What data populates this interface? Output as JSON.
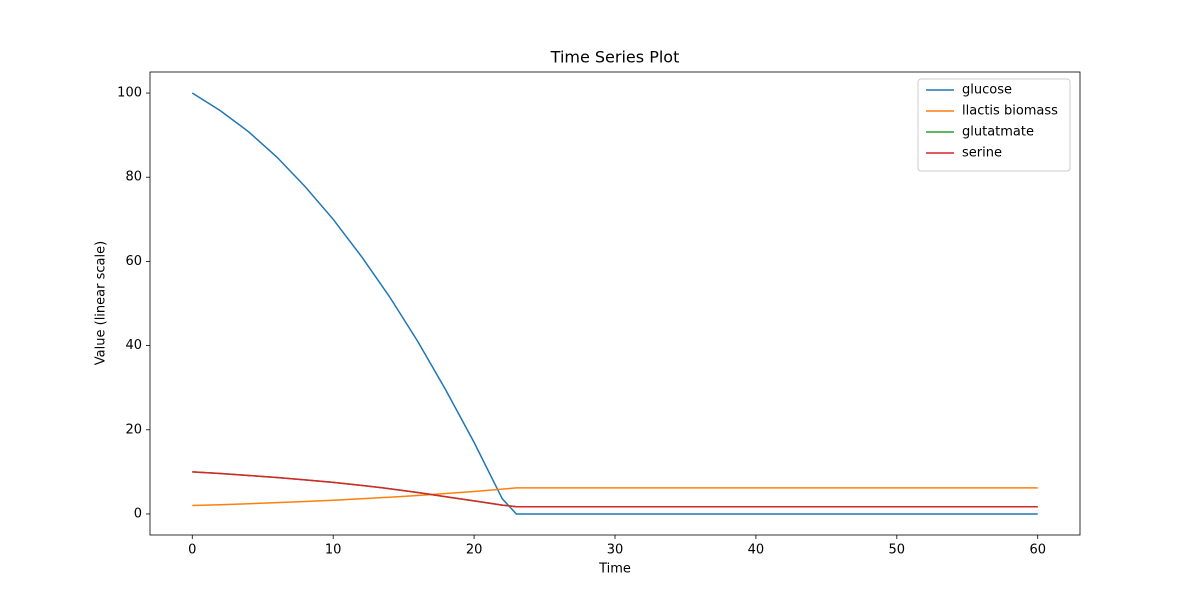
{
  "chart_data": {
    "type": "line",
    "title": "Time Series Plot",
    "x_label": "Time",
    "y_label": "Value (linear scale)",
    "x": [
      0,
      2,
      4,
      6,
      8,
      10,
      12,
      14,
      16,
      18,
      20,
      22,
      23,
      30,
      40,
      50,
      60
    ],
    "series": [
      {
        "name": "glucose",
        "color": "#1f77b4",
        "values": [
          100,
          95.8,
          90.8,
          84.8,
          77.8,
          70,
          61.2,
          51.6,
          41.0,
          29.4,
          17,
          3.6,
          0,
          0,
          0,
          0,
          0
        ]
      },
      {
        "name": "llactis biomass",
        "color": "#ff7f0e",
        "values": [
          2,
          2.2,
          2.43,
          2.69,
          2.96,
          3.27,
          3.61,
          3.98,
          4.39,
          4.85,
          5.35,
          5.9,
          6.2,
          6.2,
          6.2,
          6.2,
          6.2
        ]
      },
      {
        "name": "glutatmate",
        "color": "#2ca02c",
        "values": [
          10,
          9.6,
          9.15,
          8.65,
          8.1,
          7.5,
          6.8,
          6.0,
          5.1,
          4.1,
          3.1,
          2.1,
          1.7,
          1.7,
          1.7,
          1.7,
          1.7
        ]
      },
      {
        "name": "serine",
        "color": "#d62728",
        "values": [
          10,
          9.6,
          9.15,
          8.65,
          8.1,
          7.5,
          6.8,
          6.0,
          5.1,
          4.1,
          3.1,
          2.1,
          1.7,
          1.7,
          1.7,
          1.7,
          1.7
        ]
      }
    ],
    "xlim": [
      -3,
      63
    ],
    "ylim": [
      -5,
      105
    ],
    "xticks": [
      0,
      10,
      20,
      30,
      40,
      50,
      60
    ],
    "yticks": [
      0,
      20,
      40,
      60,
      80,
      100
    ],
    "legend": "upper right",
    "grid": false
  }
}
